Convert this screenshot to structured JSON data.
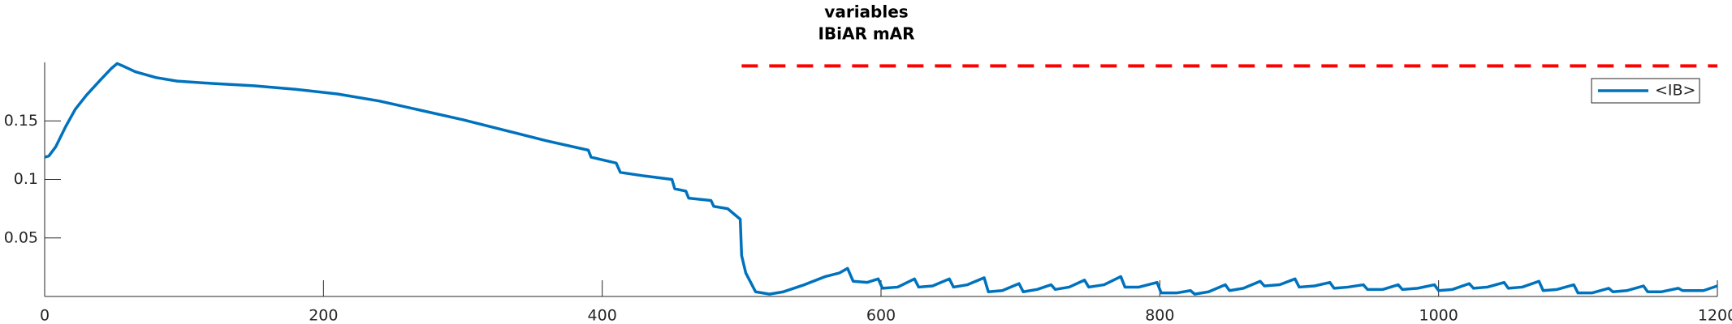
{
  "chart_data": {
    "type": "line",
    "title": "variables",
    "subtitle": "IBiAR mAR",
    "x": [
      0,
      3,
      8,
      15,
      22,
      30,
      40,
      48,
      52,
      56,
      65,
      80,
      95,
      120,
      150,
      180,
      210,
      240,
      270,
      300,
      330,
      360,
      390,
      392,
      410,
      413,
      430,
      450,
      452,
      460,
      462,
      478,
      480,
      490,
      495,
      499,
      500,
      503,
      510,
      520,
      530,
      545,
      560,
      570,
      576,
      580,
      590,
      598,
      601,
      612,
      624,
      627,
      637,
      649,
      652,
      662,
      674,
      677,
      687,
      699,
      702,
      712,
      722,
      725,
      735,
      746,
      749,
      760,
      772,
      775,
      785,
      798,
      801,
      812,
      822,
      825,
      835,
      847,
      850,
      860,
      872,
      875,
      886,
      897,
      900,
      911,
      922,
      925,
      935,
      946,
      949,
      960,
      971,
      974,
      985,
      997,
      1000,
      1010,
      1022,
      1025,
      1035,
      1047,
      1050,
      1060,
      1072,
      1075,
      1085,
      1097,
      1100,
      1110,
      1122,
      1125,
      1135,
      1147,
      1150,
      1160,
      1172,
      1175,
      1190,
      1200
    ],
    "series": [
      {
        "name": "<IB>",
        "color": "#0072bd",
        "values": [
          0.119,
          0.12,
          0.128,
          0.145,
          0.16,
          0.172,
          0.185,
          0.195,
          0.199,
          0.197,
          0.192,
          0.187,
          0.184,
          0.182,
          0.18,
          0.177,
          0.173,
          0.167,
          0.159,
          0.151,
          0.142,
          0.133,
          0.125,
          0.119,
          0.114,
          0.106,
          0.103,
          0.1,
          0.092,
          0.09,
          0.084,
          0.082,
          0.077,
          0.075,
          0.07,
          0.066,
          0.035,
          0.02,
          0.004,
          0.002,
          0.004,
          0.01,
          0.017,
          0.02,
          0.024,
          0.013,
          0.012,
          0.015,
          0.007,
          0.008,
          0.015,
          0.008,
          0.009,
          0.015,
          0.008,
          0.01,
          0.016,
          0.004,
          0.005,
          0.011,
          0.004,
          0.006,
          0.01,
          0.006,
          0.008,
          0.014,
          0.008,
          0.01,
          0.017,
          0.008,
          0.008,
          0.012,
          0.003,
          0.003,
          0.005,
          0.002,
          0.004,
          0.01,
          0.005,
          0.007,
          0.013,
          0.009,
          0.01,
          0.015,
          0.008,
          0.009,
          0.012,
          0.007,
          0.008,
          0.01,
          0.006,
          0.006,
          0.01,
          0.006,
          0.007,
          0.01,
          0.005,
          0.006,
          0.011,
          0.007,
          0.008,
          0.012,
          0.007,
          0.008,
          0.013,
          0.005,
          0.006,
          0.01,
          0.003,
          0.003,
          0.007,
          0.004,
          0.005,
          0.009,
          0.004,
          0.004,
          0.007,
          0.005,
          0.005,
          0.009
        ]
      }
    ],
    "reference_line": {
      "x": [
        500,
        1200
      ],
      "y": 0.197,
      "color": "#ff0000"
    },
    "xlim": [
      0,
      1200
    ],
    "xticks": [
      0,
      200,
      400,
      600,
      800,
      1000,
      1200
    ],
    "ylim": [
      0,
      0.2
    ],
    "yticks": [
      0.05,
      0.1,
      0.15
    ],
    "legend": "northeast"
  }
}
